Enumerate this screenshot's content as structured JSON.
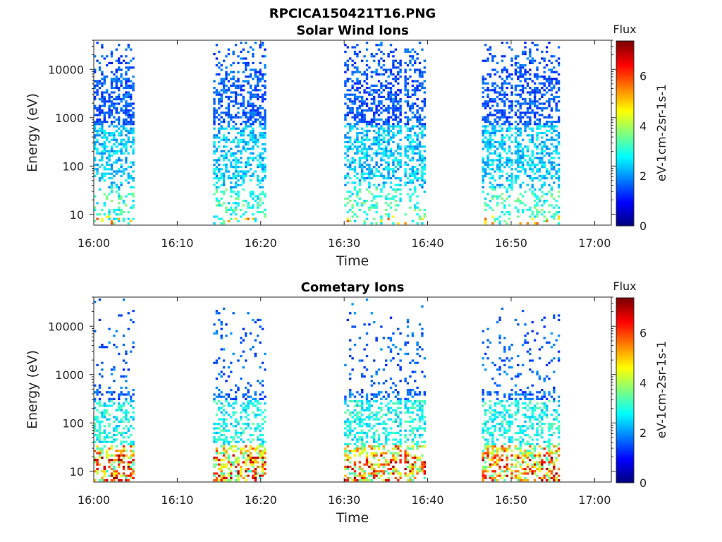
{
  "figure_title": "RPCICA150421T16.PNG",
  "colormap": [
    "#00007f",
    "#0000ff",
    "#007fff",
    "#00ffff",
    "#7fff7f",
    "#ffff00",
    "#ff7f00",
    "#ff0000",
    "#7f0000"
  ],
  "chart_data": [
    {
      "type": "heatmap",
      "title": "Solar Wind Ions",
      "xlabel": "Time",
      "ylabel": "Energy (eV)",
      "x_ticks": [
        "16:00",
        "16:10",
        "16:20",
        "16:30",
        "16:40",
        "16:50",
        "17:00"
      ],
      "xlim_minutes": [
        0,
        62
      ],
      "y_scale": "log",
      "y_ticks": [
        "10",
        "100",
        "1000",
        "10000"
      ],
      "ylim": [
        6,
        40000
      ],
      "colorbar": {
        "title": "Flux",
        "label": "eV-1cm-2sr-1s-1",
        "ticks": [
          "0",
          "2",
          "4",
          "6"
        ],
        "range": [
          0,
          7.4
        ]
      },
      "bursts": [
        {
          "start_min": 0.0,
          "end_min": 4.6,
          "ion": "solar"
        },
        {
          "start_min": 14.3,
          "end_min": 17.2,
          "ion": "solar"
        },
        {
          "start_min": 17.5,
          "end_min": 20.6,
          "ion": "solar"
        },
        {
          "start_min": 30.0,
          "end_min": 36.8,
          "ion": "solar"
        },
        {
          "start_min": 37.2,
          "end_min": 39.6,
          "ion": "solar"
        },
        {
          "start_min": 46.5,
          "end_min": 50.0,
          "ion": "solar"
        },
        {
          "start_min": 50.4,
          "end_min": 55.8,
          "ion": "solar"
        }
      ]
    },
    {
      "type": "heatmap",
      "title": "Cometary Ions",
      "xlabel": "Time",
      "ylabel": "Energy (eV)",
      "x_ticks": [
        "16:00",
        "16:10",
        "16:20",
        "16:30",
        "16:40",
        "16:50",
        "17:00"
      ],
      "xlim_minutes": [
        0,
        62
      ],
      "y_scale": "log",
      "y_ticks": [
        "10",
        "100",
        "1000",
        "10000"
      ],
      "ylim": [
        6,
        40000
      ],
      "colorbar": {
        "title": "Flux",
        "label": "eV-1cm-2sr-1s-1",
        "ticks": [
          "0",
          "2",
          "4",
          "6"
        ],
        "range": [
          0,
          7.4
        ]
      },
      "bursts": [
        {
          "start_min": 0.0,
          "end_min": 4.6,
          "ion": "comet"
        },
        {
          "start_min": 14.3,
          "end_min": 17.2,
          "ion": "comet"
        },
        {
          "start_min": 17.5,
          "end_min": 20.6,
          "ion": "comet"
        },
        {
          "start_min": 30.0,
          "end_min": 36.8,
          "ion": "comet"
        },
        {
          "start_min": 37.2,
          "end_min": 39.6,
          "ion": "comet"
        },
        {
          "start_min": 46.5,
          "end_min": 50.0,
          "ion": "comet"
        },
        {
          "start_min": 50.4,
          "end_min": 55.8,
          "ion": "comet"
        }
      ]
    }
  ]
}
